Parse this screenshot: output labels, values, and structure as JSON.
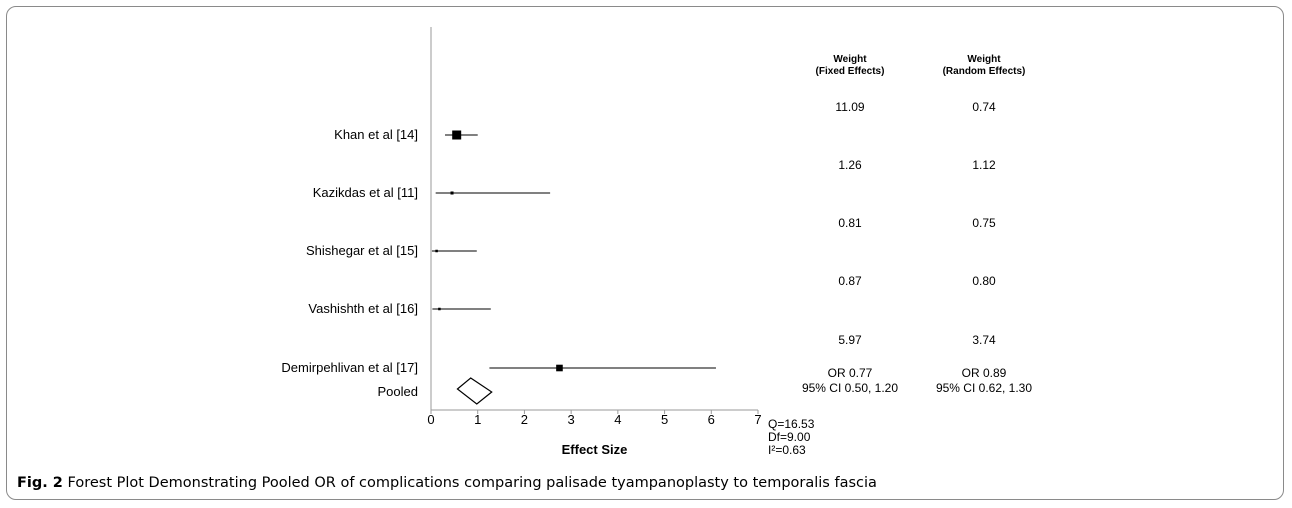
{
  "chart_data": {
    "type": "forest",
    "xlabel": "Effect Size",
    "xlim": [
      0,
      7
    ],
    "xticks": [
      0,
      1,
      2,
      3,
      4,
      5,
      6,
      7
    ],
    "columns": [
      "Weight\n(Fixed Effects)",
      "Weight\n(Random Effects)"
    ],
    "studies": [
      {
        "label": "Khan et al [14]",
        "point": 0.55,
        "ci": [
          0.3,
          1.0
        ],
        "weight_fixed": "11.09",
        "weight_random": "0.74"
      },
      {
        "label": "Kazikdas et al [11]",
        "point": 0.45,
        "ci": [
          0.1,
          2.55
        ],
        "weight_fixed": "1.26",
        "weight_random": "1.12"
      },
      {
        "label": "Shishegar et al [15]",
        "point": 0.12,
        "ci": [
          0.02,
          0.98
        ],
        "weight_fixed": "0.81",
        "weight_random": "0.75"
      },
      {
        "label": "Vashishth et al [16]",
        "point": 0.18,
        "ci": [
          0.03,
          1.28
        ],
        "weight_fixed": "0.87",
        "weight_random": "0.80"
      },
      {
        "label": "Demirpehlivan et al [17]",
        "point": 2.75,
        "ci": [
          1.25,
          6.1
        ],
        "weight_fixed": "5.97",
        "weight_random": "3.74"
      }
    ],
    "pooled": {
      "label": "Pooled",
      "fixed_text": [
        "OR 0.77",
        "95% CI 0.50, 1.20"
      ],
      "random_text": [
        "OR 0.89",
        "95% CI 0.62,  1.30"
      ]
    },
    "heterogeneity": [
      "Q=16.53",
      "Df=9.00",
      "I²=0.63"
    ]
  },
  "caption": {
    "label": "Fig. 2",
    "text": "Forest Plot Demonstrating Pooled OR of complications comparing palisade tyampanoplasty to temporalis fascia"
  }
}
